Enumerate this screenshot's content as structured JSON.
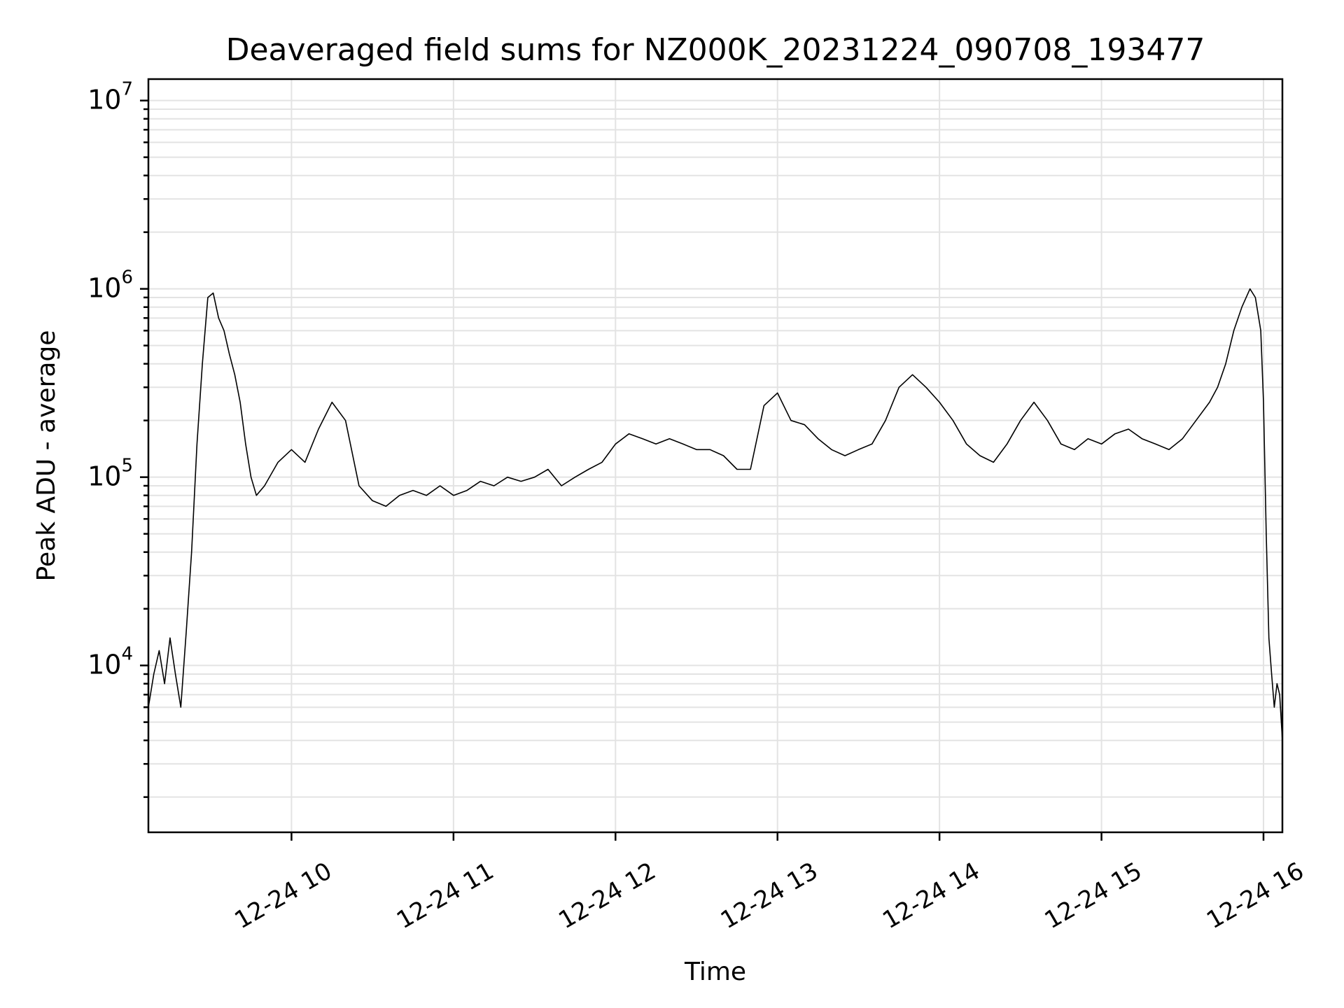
{
  "chart_data": {
    "type": "line",
    "title": "Deaveraged field sums for NZ000K_20231224_090708_193477",
    "xlabel": "Time",
    "ylabel": "Peak ADU - average",
    "yscale": "log",
    "ylim": [
      1300,
      13000000
    ],
    "xlim": [
      "2023-12-24 09:07",
      "2023-12-24 16:07"
    ],
    "grid": true,
    "line_color": "#000000",
    "x_ticks": [
      {
        "value": "2023-12-24 10:00",
        "label": "12-24 10"
      },
      {
        "value": "2023-12-24 11:00",
        "label": "12-24 11"
      },
      {
        "value": "2023-12-24 12:00",
        "label": "12-24 12"
      },
      {
        "value": "2023-12-24 13:00",
        "label": "12-24 13"
      },
      {
        "value": "2023-12-24 14:00",
        "label": "12-24 14"
      },
      {
        "value": "2023-12-24 15:00",
        "label": "12-24 15"
      },
      {
        "value": "2023-12-24 16:00",
        "label": "12-24 16"
      }
    ],
    "y_ticks": [
      {
        "value": 10000,
        "base": "10",
        "exp": "4"
      },
      {
        "value": 100000,
        "base": "10",
        "exp": "5"
      },
      {
        "value": 1000000,
        "base": "10",
        "exp": "6"
      },
      {
        "value": 10000000,
        "base": "10",
        "exp": "7"
      }
    ],
    "series": [
      {
        "x": [
          "2023-12-24 09:07",
          "2023-12-24 09:09",
          "2023-12-24 09:11",
          "2023-12-24 09:13",
          "2023-12-24 09:15",
          "2023-12-24 09:17",
          "2023-12-24 09:19",
          "2023-12-24 09:21",
          "2023-12-24 09:23",
          "2023-12-24 09:25",
          "2023-12-24 09:27",
          "2023-12-24 09:29",
          "2023-12-24 09:31",
          "2023-12-24 09:33",
          "2023-12-24 09:35",
          "2023-12-24 09:37",
          "2023-12-24 09:39",
          "2023-12-24 09:41",
          "2023-12-24 09:43",
          "2023-12-24 09:45",
          "2023-12-24 09:47",
          "2023-12-24 09:50",
          "2023-12-24 09:55",
          "2023-12-24 10:00",
          "2023-12-24 10:05",
          "2023-12-24 10:10",
          "2023-12-24 10:15",
          "2023-12-24 10:20",
          "2023-12-24 10:25",
          "2023-12-24 10:30",
          "2023-12-24 10:35",
          "2023-12-24 10:40",
          "2023-12-24 10:45",
          "2023-12-24 10:50",
          "2023-12-24 10:55",
          "2023-12-24 11:00",
          "2023-12-24 11:05",
          "2023-12-24 11:10",
          "2023-12-24 11:15",
          "2023-12-24 11:20",
          "2023-12-24 11:25",
          "2023-12-24 11:30",
          "2023-12-24 11:35",
          "2023-12-24 11:40",
          "2023-12-24 11:45",
          "2023-12-24 11:50",
          "2023-12-24 11:55",
          "2023-12-24 12:00",
          "2023-12-24 12:05",
          "2023-12-24 12:10",
          "2023-12-24 12:15",
          "2023-12-24 12:20",
          "2023-12-24 12:25",
          "2023-12-24 12:30",
          "2023-12-24 12:35",
          "2023-12-24 12:40",
          "2023-12-24 12:45",
          "2023-12-24 12:50",
          "2023-12-24 12:55",
          "2023-12-24 13:00",
          "2023-12-24 13:05",
          "2023-12-24 13:10",
          "2023-12-24 13:15",
          "2023-12-24 13:20",
          "2023-12-24 13:25",
          "2023-12-24 13:30",
          "2023-12-24 13:35",
          "2023-12-24 13:40",
          "2023-12-24 13:45",
          "2023-12-24 13:50",
          "2023-12-24 13:55",
          "2023-12-24 14:00",
          "2023-12-24 14:05",
          "2023-12-24 14:10",
          "2023-12-24 14:15",
          "2023-12-24 14:20",
          "2023-12-24 14:25",
          "2023-12-24 14:30",
          "2023-12-24 14:35",
          "2023-12-24 14:40",
          "2023-12-24 14:45",
          "2023-12-24 14:50",
          "2023-12-24 14:55",
          "2023-12-24 15:00",
          "2023-12-24 15:05",
          "2023-12-24 15:10",
          "2023-12-24 15:15",
          "2023-12-24 15:20",
          "2023-12-24 15:25",
          "2023-12-24 15:30",
          "2023-12-24 15:35",
          "2023-12-24 15:40",
          "2023-12-24 15:43",
          "2023-12-24 15:46",
          "2023-12-24 15:49",
          "2023-12-24 15:52",
          "2023-12-24 15:55",
          "2023-12-24 15:57",
          "2023-12-24 15:59",
          "2023-12-24 16:00",
          "2023-12-24 16:01",
          "2023-12-24 16:02",
          "2023-12-24 16:03",
          "2023-12-24 16:04",
          "2023-12-24 16:05",
          "2023-12-24 16:06",
          "2023-12-24 16:07"
        ],
        "values": [
          6000,
          9000,
          12000,
          8000,
          14000,
          9000,
          6000,
          15000,
          40000,
          150000,
          400000,
          900000,
          950000,
          700000,
          600000,
          450000,
          350000,
          250000,
          150000,
          100000,
          80000,
          90000,
          120000,
          140000,
          120000,
          180000,
          250000,
          200000,
          90000,
          75000,
          70000,
          80000,
          85000,
          80000,
          90000,
          80000,
          85000,
          95000,
          90000,
          100000,
          95000,
          100000,
          110000,
          90000,
          100000,
          110000,
          120000,
          150000,
          170000,
          160000,
          150000,
          160000,
          150000,
          140000,
          140000,
          130000,
          110000,
          110000,
          240000,
          280000,
          200000,
          190000,
          160000,
          140000,
          130000,
          140000,
          150000,
          200000,
          300000,
          350000,
          300000,
          250000,
          200000,
          150000,
          130000,
          120000,
          150000,
          200000,
          250000,
          200000,
          150000,
          140000,
          160000,
          150000,
          170000,
          180000,
          160000,
          150000,
          140000,
          160000,
          200000,
          250000,
          300000,
          400000,
          600000,
          800000,
          1000000,
          900000,
          600000,
          250000,
          50000,
          14000,
          9000,
          6000,
          8000,
          7000,
          4000
        ]
      }
    ]
  }
}
